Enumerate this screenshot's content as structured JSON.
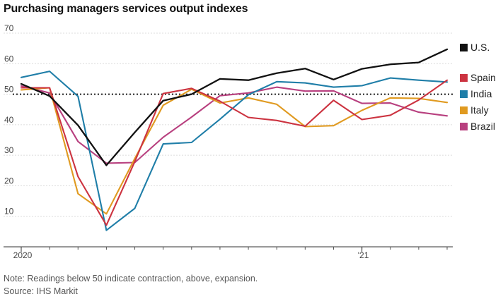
{
  "title": "Purchasing managers services output indexes",
  "note": "Note: Readings below 50 indicate contraction, above, expansion.",
  "source": "Source: IHS Markit",
  "chart_data": {
    "type": "line",
    "title": "Purchasing managers services output indexes",
    "x": [
      "2020-01",
      "2020-02",
      "2020-03",
      "2020-04",
      "2020-05",
      "2020-06",
      "2020-07",
      "2020-08",
      "2020-09",
      "2020-10",
      "2020-11",
      "2020-12",
      "2021-01",
      "2021-02",
      "2021-03",
      "2021-04"
    ],
    "x_tick_labels": [
      {
        "label": "2020",
        "at": "2020-01"
      },
      {
        "label": "'21",
        "at": "2021-01"
      }
    ],
    "ylim": [
      0,
      70
    ],
    "y_ticks": [
      10,
      20,
      30,
      40,
      50,
      60,
      70
    ],
    "reference_line": {
      "y": 50,
      "style": "dotted"
    },
    "grid": true,
    "legend_position": "right",
    "series": [
      {
        "name": "U.S.",
        "color": "#111111",
        "values": [
          53.4,
          49.4,
          39.8,
          26.7,
          37.5,
          47.9,
          50.0,
          55.0,
          54.6,
          56.9,
          58.4,
          54.8,
          58.3,
          59.8,
          60.4,
          64.7
        ]
      },
      {
        "name": "Spain",
        "color": "#cc3340",
        "values": [
          52.1,
          52.1,
          23.0,
          7.1,
          27.9,
          50.2,
          51.9,
          47.7,
          42.4,
          41.4,
          39.5,
          48.0,
          41.7,
          43.1,
          48.1,
          54.6
        ]
      },
      {
        "name": "India",
        "color": "#1f7ea8",
        "values": [
          55.5,
          57.5,
          49.3,
          5.4,
          12.6,
          33.7,
          34.2,
          41.8,
          49.8,
          54.1,
          53.7,
          52.3,
          52.8,
          55.3,
          54.6,
          54.0
        ]
      },
      {
        "name": "Italy",
        "color": "#e09a20",
        "values": [
          51.4,
          52.1,
          17.4,
          10.8,
          28.9,
          46.4,
          51.6,
          47.1,
          48.8,
          46.7,
          39.4,
          39.7,
          44.7,
          48.8,
          48.6,
          47.3
        ]
      },
      {
        "name": "Brazil",
        "color": "#b8407f",
        "values": [
          52.7,
          50.4,
          34.5,
          27.4,
          27.6,
          35.9,
          42.5,
          49.5,
          50.4,
          52.3,
          51.0,
          51.1,
          47.0,
          47.1,
          44.1,
          42.9
        ]
      }
    ]
  }
}
